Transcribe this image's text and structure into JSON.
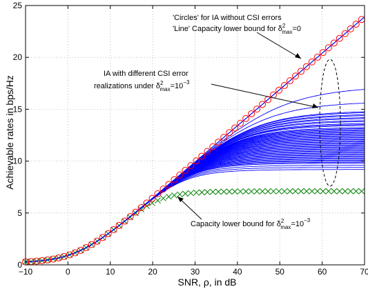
{
  "chart_data": {
    "type": "line",
    "xlabel": "SNR, ρ, in dB",
    "ylabel": "Achievable rates in bps/Hz",
    "xlim": [
      -10,
      70
    ],
    "ylim": [
      0,
      25
    ],
    "grid": true,
    "x_ticks": [
      "−10",
      "0",
      "10",
      "20",
      "30",
      "40",
      "50",
      "60",
      "70"
    ],
    "y_ticks": [
      "0",
      "5",
      "10",
      "15",
      "20",
      "25"
    ],
    "x_tick_values": [
      -10,
      0,
      10,
      20,
      30,
      40,
      50,
      60,
      70
    ],
    "y_tick_values": [
      0,
      5,
      10,
      15,
      20,
      25
    ],
    "series": [
      {
        "label": "IA without CSI errors (circles) / Capacity lower bound for δ²max=0 (line)",
        "marker": "circle",
        "color": "#ff0000",
        "line_color": "#0000ff",
        "x": [
          -10,
          70
        ],
        "y": [
          0.3,
          23.9
        ],
        "curve": "capacity_no_error"
      },
      {
        "label": "Capacity lower bound for δ²max=10⁻³",
        "marker": "x",
        "color": "#008000",
        "x": [
          -10,
          70
        ],
        "y": [
          0.2,
          7.1
        ],
        "curve": "capacity_with_error",
        "saturation": 7.1
      },
      {
        "label": "IA with different CSI error realizations under δ²max=10⁻³",
        "marker": "none",
        "color": "#0000ff",
        "curve": "ia_realizations",
        "saturation_levels": [
          17.3,
          15.8,
          14.9,
          14.8,
          14.6,
          14.5,
          14.3,
          14.2,
          14.0,
          13.9,
          13.7,
          13.6,
          13.5,
          13.3,
          13.2,
          13.1,
          13.0,
          12.9,
          12.8,
          12.7,
          12.6,
          12.5,
          12.4,
          12.3,
          12.2,
          12.1,
          12.0,
          11.9,
          11.8,
          11.7,
          11.6,
          11.5,
          11.4,
          11.3,
          11.2,
          11.1,
          11.0,
          10.9,
          10.8,
          10.7,
          10.6,
          10.5,
          10.4,
          10.3,
          10.2,
          10.1,
          10.0,
          9.9,
          9.8,
          9.6,
          9.4,
          9.2
        ]
      }
    ],
    "annotations": {
      "a1_line1": "'Circles' for IA without CSI errors",
      "a1_line2a": "'Line' Capacity lower bound for ",
      "a1_line2_sym": "δ",
      "a1_line2_sup": "2",
      "a1_line2_sub": "max",
      "a1_line2b": "=0",
      "a2_line1": "IA with different CSI error",
      "a2_line2a": "realizations under ",
      "a2_line2_sym": "δ",
      "a2_line2_sup": "2",
      "a2_line2_sub": "max",
      "a2_line2b": "=10",
      "a2_line2_exp": "−3",
      "a3_a": "Capacity lower bound for ",
      "a3_sym": "δ",
      "a3_sup": "2",
      "a3_sub": "max",
      "a3_b": "=10",
      "a3_exp": "−3"
    }
  }
}
